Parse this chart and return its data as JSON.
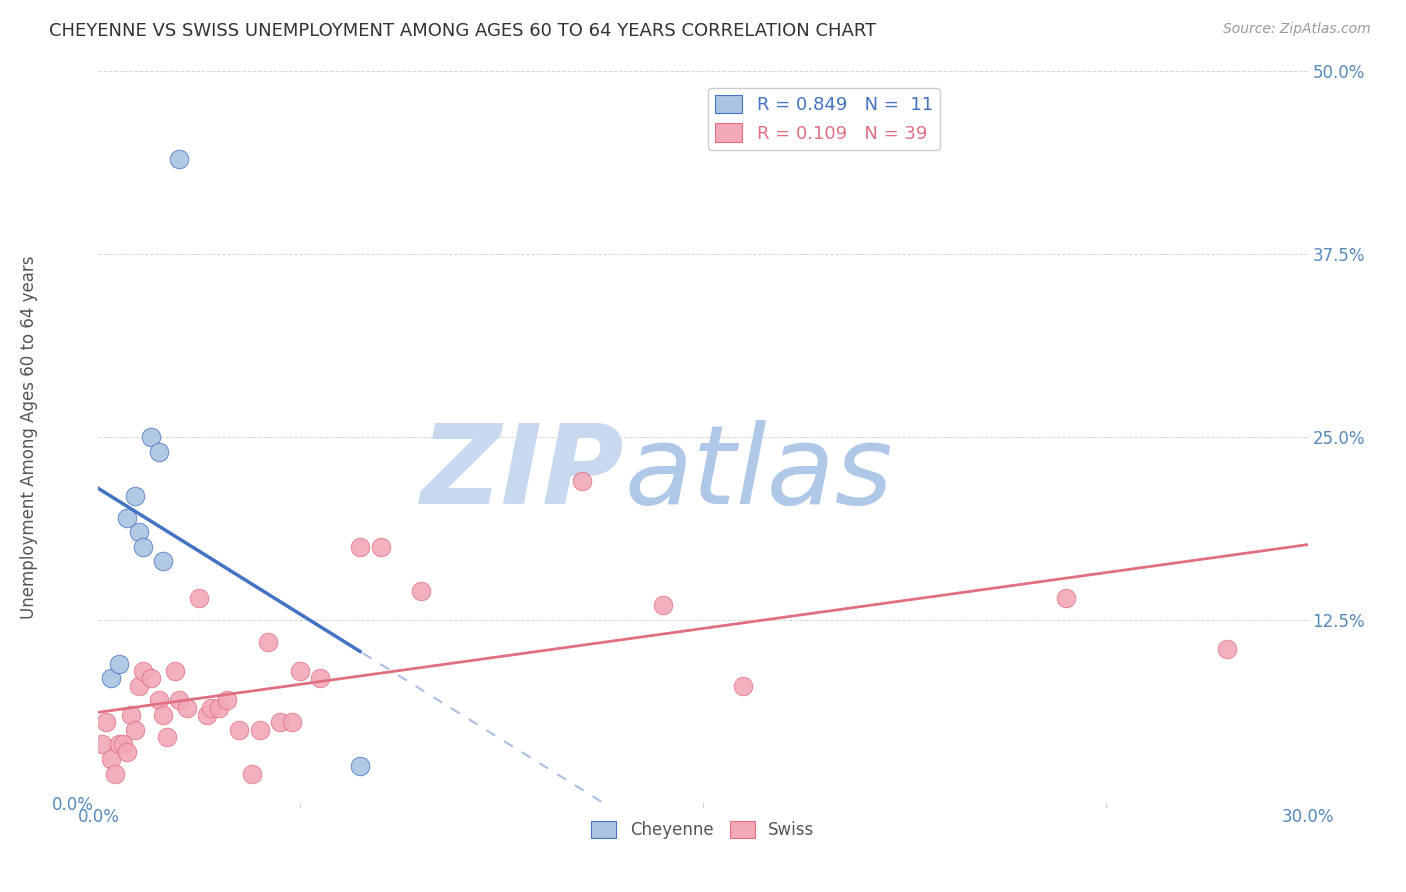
{
  "title": "CHEYENNE VS SWISS UNEMPLOYMENT AMONG AGES 60 TO 64 YEARS CORRELATION CHART",
  "source": "Source: ZipAtlas.com",
  "ylabel": "Unemployment Among Ages 60 to 64 years",
  "xlim": [
    0.0,
    0.3
  ],
  "ylim": [
    0.0,
    0.5
  ],
  "cheyenne_color": "#aac4e2",
  "swiss_color": "#f2a8b8",
  "cheyenne_line_color": "#4472c4",
  "swiss_line_color": "#e07080",
  "cheyenne_R": 0.849,
  "cheyenne_N": 11,
  "swiss_R": 0.109,
  "swiss_N": 39,
  "cheyenne_x": [
    0.003,
    0.005,
    0.007,
    0.009,
    0.01,
    0.011,
    0.013,
    0.015,
    0.016,
    0.02,
    0.065
  ],
  "cheyenne_y": [
    0.085,
    0.095,
    0.195,
    0.21,
    0.185,
    0.175,
    0.25,
    0.24,
    0.165,
    0.44,
    0.025
  ],
  "swiss_x": [
    0.001,
    0.002,
    0.003,
    0.004,
    0.005,
    0.006,
    0.007,
    0.008,
    0.009,
    0.01,
    0.011,
    0.013,
    0.015,
    0.016,
    0.017,
    0.019,
    0.02,
    0.022,
    0.025,
    0.027,
    0.028,
    0.03,
    0.032,
    0.035,
    0.038,
    0.04,
    0.042,
    0.045,
    0.048,
    0.05,
    0.055,
    0.065,
    0.07,
    0.08,
    0.12,
    0.14,
    0.16,
    0.24,
    0.28
  ],
  "swiss_y": [
    0.04,
    0.055,
    0.03,
    0.02,
    0.04,
    0.04,
    0.035,
    0.06,
    0.05,
    0.08,
    0.09,
    0.085,
    0.07,
    0.06,
    0.045,
    0.09,
    0.07,
    0.065,
    0.14,
    0.06,
    0.065,
    0.065,
    0.07,
    0.05,
    0.02,
    0.05,
    0.11,
    0.055,
    0.055,
    0.09,
    0.085,
    0.175,
    0.175,
    0.145,
    0.22,
    0.135,
    0.08,
    0.14,
    0.105
  ],
  "watermark_zip": "ZIP",
  "watermark_atlas": "atlas",
  "watermark_zip_color": "#c8d8ee",
  "watermark_atlas_color": "#b0c8e8",
  "background_color": "#ffffff",
  "grid_color": "#cccccc",
  "title_color": "#333333",
  "axis_label_color": "#555555",
  "tick_color": "#5588bb",
  "legend_color_cheyenne": "#4472c4",
  "legend_color_swiss": "#e07080",
  "legend_fontsize": 13,
  "title_fontsize": 13,
  "source_fontsize": 10,
  "ylabel_fontsize": 12,
  "tick_fontsize": 12
}
